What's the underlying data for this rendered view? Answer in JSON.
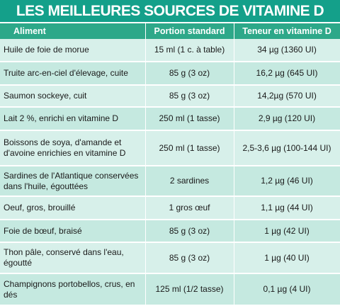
{
  "title": "LES MEILLEURES SOURCES DE VITAMINE D",
  "colors": {
    "title_bg": "#14a08a",
    "header_bg": "#2da889",
    "row_light": "#d7f0ea",
    "row_dark": "#c5e9e0"
  },
  "headers": {
    "aliment": "Aliment",
    "portion": "Portion standard",
    "teneur": "Teneur en vitamine D"
  },
  "rows": [
    {
      "aliment": "Huile de foie de morue",
      "portion": "15 ml (1 c. à table)",
      "teneur": "34 µg (1360 UI)"
    },
    {
      "aliment": "Truite arc-en-ciel d'élevage, cuite",
      "portion": "85 g (3 oz)",
      "teneur": "16,2 µg (645 UI)"
    },
    {
      "aliment": "Saumon sockeye, cuit",
      "portion": "85 g (3 oz)",
      "teneur": "14,2µg (570 UI)"
    },
    {
      "aliment": "Lait 2 %, enrichi en vitamine D",
      "portion": "250 ml (1 tasse)",
      "teneur": "2,9 µg (120 UI)"
    },
    {
      "aliment": "Boissons de soya, d'amande et d'avoine enrichies en vitamine D",
      "portion": "250 ml (1 tasse)",
      "teneur": "2,5-3,6 µg (100-144 UI)"
    },
    {
      "aliment": "Sardines de l'Atlantique conservées dans l'huile, égouttées",
      "portion": "2 sardines",
      "teneur": "1,2 µg (46 UI)"
    },
    {
      "aliment": "Oeuf, gros, brouillé",
      "portion": "1 gros œuf",
      "teneur": "1,1 µg (44 UI)"
    },
    {
      "aliment": "Foie de bœuf, braisé",
      "portion": "85 g (3 oz)",
      "teneur": "1 µg (42 UI)"
    },
    {
      "aliment": "Thon pâle, conservé dans l'eau, égoutté",
      "portion": "85 g (3 oz)",
      "teneur": "1 µg (40 UI)"
    },
    {
      "aliment": "Champignons portobellos, crus, en dés",
      "portion": "125 ml (1/2 tasse)",
      "teneur": "0,1 µg (4 UI)"
    }
  ]
}
